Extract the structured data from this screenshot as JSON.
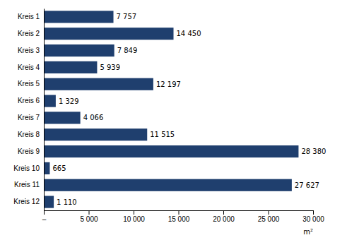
{
  "chart_data": {
    "type": "bar",
    "orientation": "horizontal",
    "categories": [
      "Kreis 1",
      "Kreis 2",
      "Kreis 3",
      "Kreis 4",
      "Kreis 5",
      "Kreis 6",
      "Kreis 7",
      "Kreis 8",
      "Kreis 9",
      "Kreis 10",
      "Kreis 11",
      "Kreis 12"
    ],
    "values": [
      7757,
      14450,
      7849,
      5939,
      12197,
      1329,
      4066,
      11515,
      28380,
      665,
      27627,
      1110
    ],
    "value_labels": [
      "7 757",
      "14 450",
      "7 849",
      "5 939",
      "12 197",
      "1 329",
      "4 066",
      "11 515",
      "28 380",
      "665",
      "27 627",
      "1 110"
    ],
    "data_labels": true,
    "color": "#1F3F6E",
    "x_label": "m²",
    "xlim": [
      0,
      30000
    ],
    "xticks": [
      {
        "value": 0,
        "label": "–"
      },
      {
        "value": 5000,
        "label": "5 000"
      },
      {
        "value": 10000,
        "label": "10 000"
      },
      {
        "value": 15000,
        "label": "15 000"
      },
      {
        "value": 20000,
        "label": "20 000"
      },
      {
        "value": 25000,
        "label": "25 000"
      },
      {
        "value": 30000,
        "label": "30 000"
      }
    ],
    "grid": false
  }
}
